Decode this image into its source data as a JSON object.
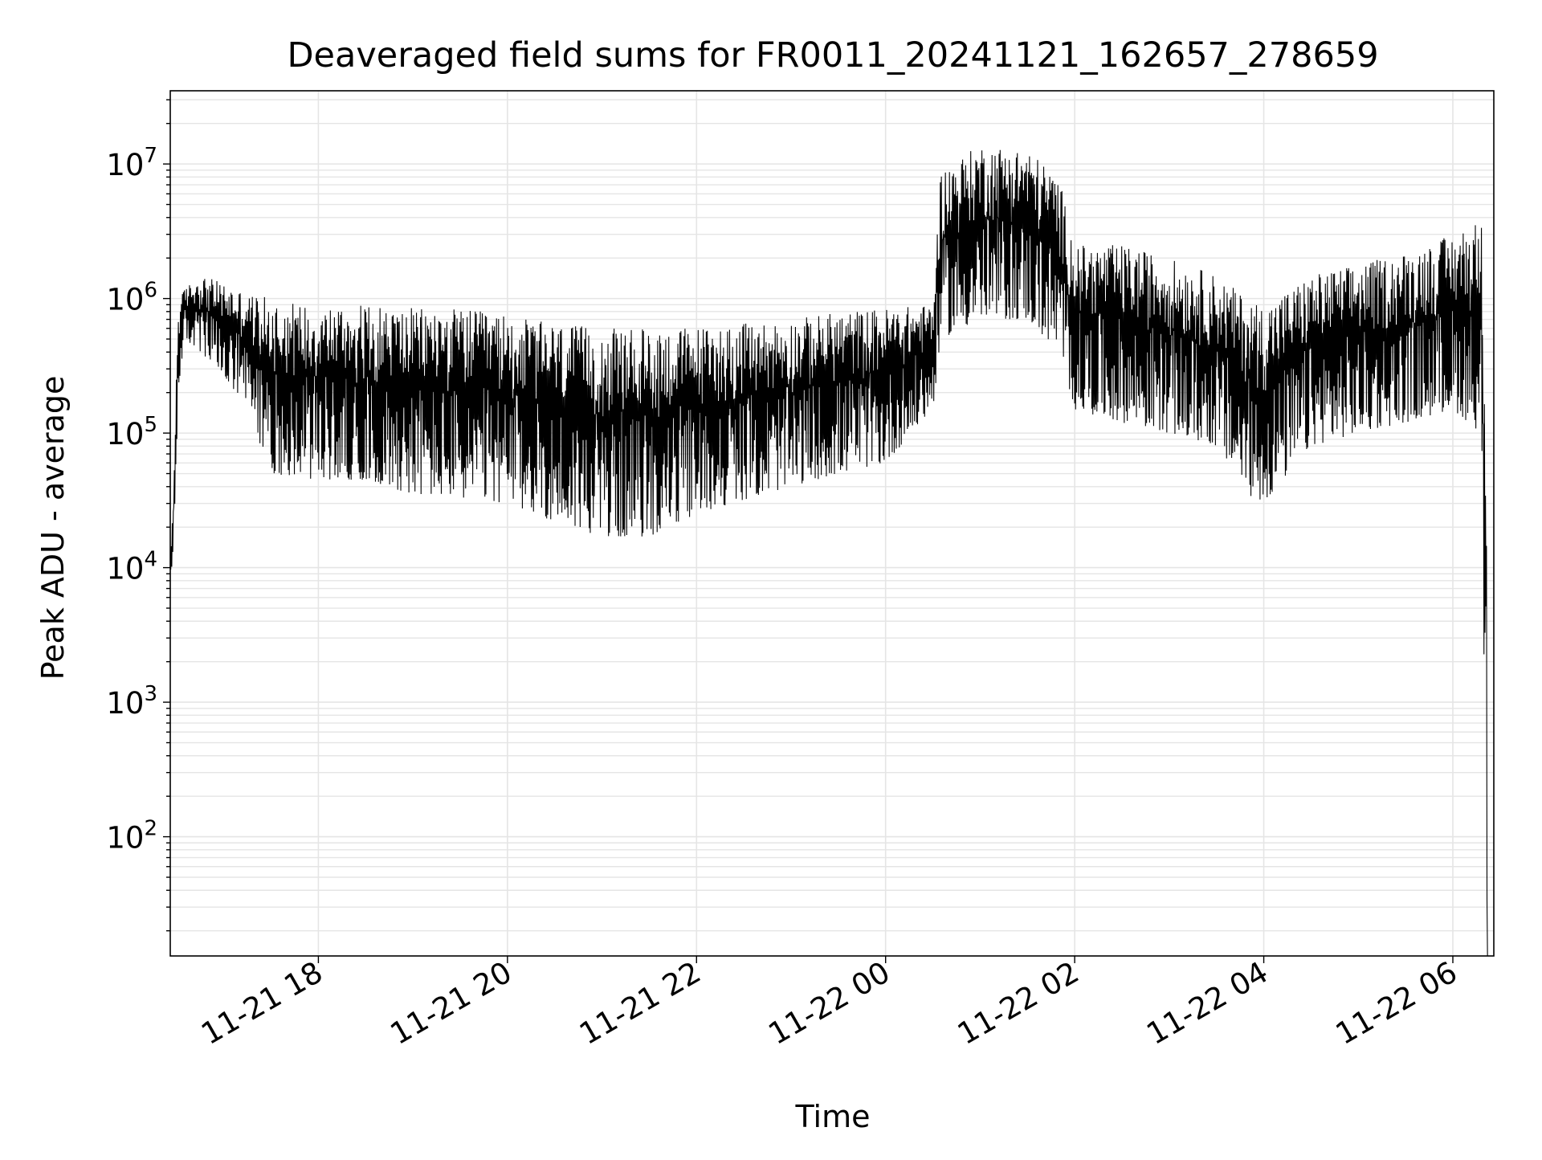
{
  "chart_data": {
    "type": "line",
    "title": "Deaveraged field sums for FR0011_20241121_162657_278659",
    "xlabel": "Time",
    "ylabel": "Peak ADU - average",
    "yscale": "log",
    "grid": true,
    "line_color": "#000000",
    "grid_color": "#e5e5e5",
    "xlim": [
      "2024-11-21 16:26",
      "2024-11-22 06:26"
    ],
    "ylim": [
      13,
      35000000
    ],
    "xticks": [
      {
        "value": "2024-11-21 18:00",
        "label": "11-21 18"
      },
      {
        "value": "2024-11-21 20:00",
        "label": "11-21 20"
      },
      {
        "value": "2024-11-21 22:00",
        "label": "11-21 22"
      },
      {
        "value": "2024-11-22 00:00",
        "label": "11-22 00"
      },
      {
        "value": "2024-11-22 02:00",
        "label": "11-22 02"
      },
      {
        "value": "2024-11-22 04:00",
        "label": "11-22 04"
      },
      {
        "value": "2024-11-22 06:00",
        "label": "11-22 06"
      }
    ],
    "yticks": [
      {
        "value": 100,
        "base": "10",
        "exp": "2"
      },
      {
        "value": 1000,
        "base": "10",
        "exp": "3"
      },
      {
        "value": 10000,
        "base": "10",
        "exp": "4"
      },
      {
        "value": 100000,
        "base": "10",
        "exp": "5"
      },
      {
        "value": 1000000,
        "base": "10",
        "exp": "6"
      },
      {
        "value": 10000000,
        "base": "10",
        "exp": "7"
      }
    ],
    "series": [
      {
        "envelope": [
          {
            "t": "2024-11-21 16:26",
            "lo": 9000,
            "hi": 10000
          },
          {
            "t": "2024-11-21 16:28",
            "lo": 9500,
            "hi": 40000
          },
          {
            "t": "2024-11-21 16:31",
            "lo": 200000,
            "hi": 900000
          },
          {
            "t": "2024-11-21 16:35",
            "lo": 500000,
            "hi": 1200000
          },
          {
            "t": "2024-11-21 16:45",
            "lo": 400000,
            "hi": 1500000
          },
          {
            "t": "2024-11-21 17:00",
            "lo": 250000,
            "hi": 1300000
          },
          {
            "t": "2024-11-21 17:15",
            "lo": 150000,
            "hi": 1100000
          },
          {
            "t": "2024-11-21 17:30",
            "lo": 50000,
            "hi": 1000000
          },
          {
            "t": "2024-11-21 18:00",
            "lo": 45000,
            "hi": 900000
          },
          {
            "t": "2024-11-21 18:30",
            "lo": 45000,
            "hi": 900000
          },
          {
            "t": "2024-11-21 19:00",
            "lo": 35000,
            "hi": 850000
          },
          {
            "t": "2024-11-21 19:30",
            "lo": 33000,
            "hi": 850000
          },
          {
            "t": "2024-11-21 20:00",
            "lo": 30000,
            "hi": 750000
          },
          {
            "t": "2024-11-21 20:30",
            "lo": 22000,
            "hi": 650000
          },
          {
            "t": "2024-11-21 21:00",
            "lo": 17000,
            "hi": 600000
          },
          {
            "t": "2024-11-21 21:30",
            "lo": 17000,
            "hi": 600000
          },
          {
            "t": "2024-11-21 22:00",
            "lo": 25000,
            "hi": 620000
          },
          {
            "t": "2024-11-21 22:30",
            "lo": 32000,
            "hi": 650000
          },
          {
            "t": "2024-11-21 23:00",
            "lo": 40000,
            "hi": 700000
          },
          {
            "t": "2024-11-21 23:30",
            "lo": 50000,
            "hi": 800000
          },
          {
            "t": "2024-11-22 00:00",
            "lo": 60000,
            "hi": 850000
          },
          {
            "t": "2024-11-22 00:30",
            "lo": 150000,
            "hi": 900000
          },
          {
            "t": "2024-11-22 00:35",
            "lo": 500000,
            "hi": 9000000
          },
          {
            "t": "2024-11-22 01:00",
            "lo": 700000,
            "hi": 14000000
          },
          {
            "t": "2024-11-22 01:30",
            "lo": 700000,
            "hi": 13000000
          },
          {
            "t": "2024-11-22 01:50",
            "lo": 400000,
            "hi": 8000000
          },
          {
            "t": "2024-11-22 02:00",
            "lo": 150000,
            "hi": 2500000
          },
          {
            "t": "2024-11-22 02:30",
            "lo": 120000,
            "hi": 2500000
          },
          {
            "t": "2024-11-22 03:00",
            "lo": 100000,
            "hi": 2000000
          },
          {
            "t": "2024-11-22 03:30",
            "lo": 80000,
            "hi": 1500000
          },
          {
            "t": "2024-11-22 03:50",
            "lo": 35000,
            "hi": 1000000
          },
          {
            "t": "2024-11-22 04:00",
            "lo": 30000,
            "hi": 900000
          },
          {
            "t": "2024-11-22 04:30",
            "lo": 80000,
            "hi": 1500000
          },
          {
            "t": "2024-11-22 05:00",
            "lo": 100000,
            "hi": 1800000
          },
          {
            "t": "2024-11-22 05:30",
            "lo": 120000,
            "hi": 2200000
          },
          {
            "t": "2024-11-22 06:00",
            "lo": 150000,
            "hi": 3000000
          },
          {
            "t": "2024-11-22 06:18",
            "lo": 100000,
            "hi": 4000000
          },
          {
            "t": "2024-11-22 06:22",
            "lo": 13,
            "hi": 200000
          }
        ]
      }
    ]
  }
}
